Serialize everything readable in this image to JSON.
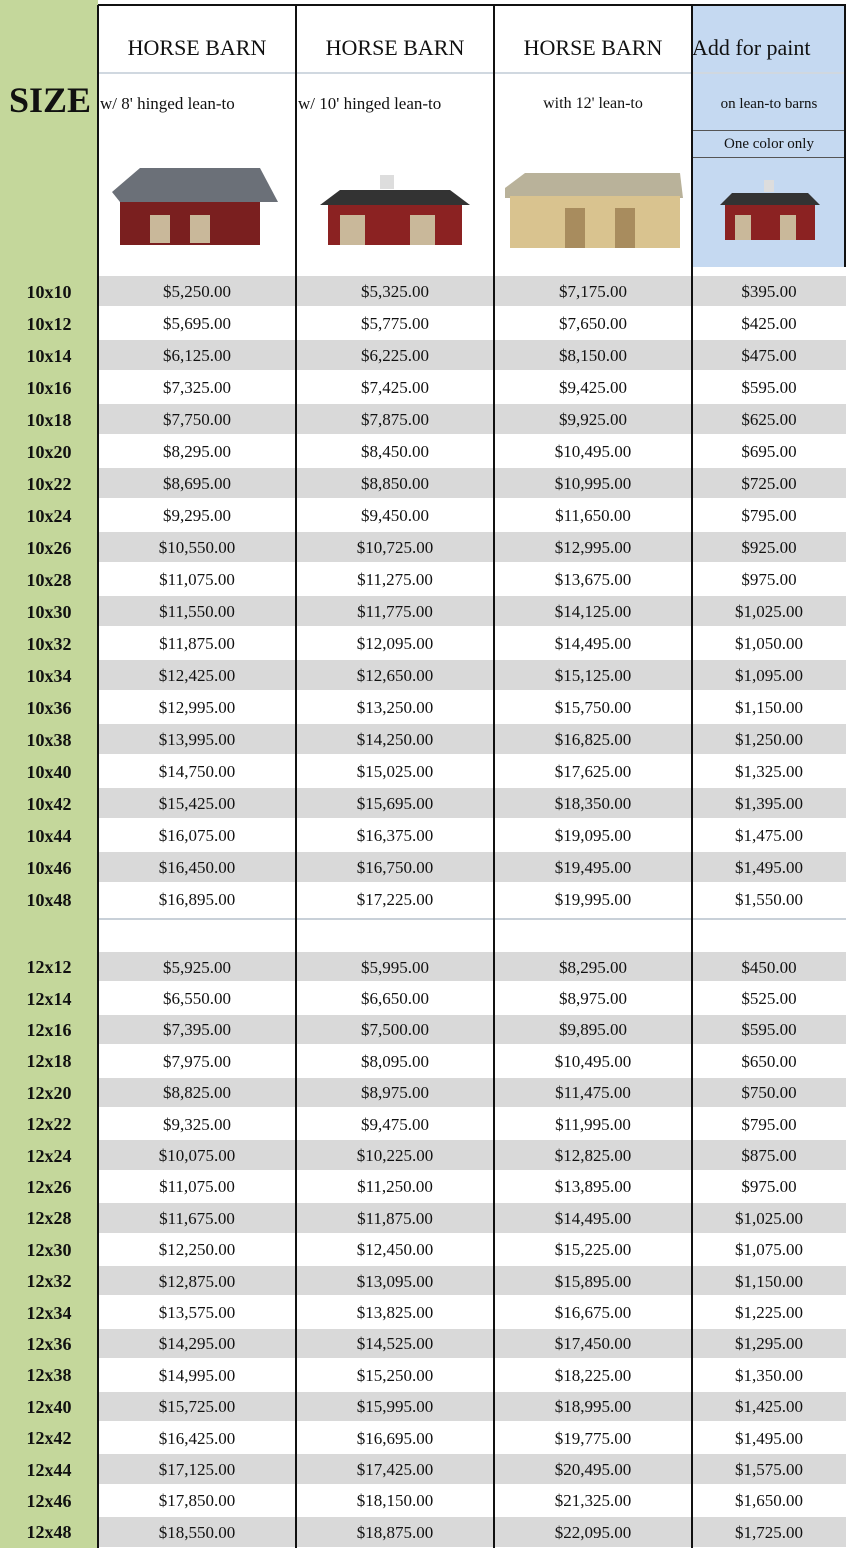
{
  "header": {
    "size_label": "SIZE",
    "note": "One color only",
    "columns": [
      {
        "title": "HORSE BARN",
        "subtitle": "w/ 8' hinged lean-to"
      },
      {
        "title": "HORSE BARN",
        "subtitle": "w/ 10' hinged lean-to"
      },
      {
        "title": "HORSE BARN",
        "subtitle": "with 12' lean-to"
      },
      {
        "title": "Add for paint",
        "subtitle": "on lean-to barns"
      }
    ]
  },
  "table": {
    "groups": [
      {
        "rows": [
          [
            "10x10",
            "$5,250.00",
            "$5,325.00",
            "$7,175.00",
            "$395.00"
          ],
          [
            "10x12",
            "$5,695.00",
            "$5,775.00",
            "$7,650.00",
            "$425.00"
          ],
          [
            "10x14",
            "$6,125.00",
            "$6,225.00",
            "$8,150.00",
            "$475.00"
          ],
          [
            "10x16",
            "$7,325.00",
            "$7,425.00",
            "$9,425.00",
            "$595.00"
          ],
          [
            "10x18",
            "$7,750.00",
            "$7,875.00",
            "$9,925.00",
            "$625.00"
          ],
          [
            "10x20",
            "$8,295.00",
            "$8,450.00",
            "$10,495.00",
            "$695.00"
          ],
          [
            "10x22",
            "$8,695.00",
            "$8,850.00",
            "$10,995.00",
            "$725.00"
          ],
          [
            "10x24",
            "$9,295.00",
            "$9,450.00",
            "$11,650.00",
            "$795.00"
          ],
          [
            "10x26",
            "$10,550.00",
            "$10,725.00",
            "$12,995.00",
            "$925.00"
          ],
          [
            "10x28",
            "$11,075.00",
            "$11,275.00",
            "$13,675.00",
            "$975.00"
          ],
          [
            "10x30",
            "$11,550.00",
            "$11,775.00",
            "$14,125.00",
            "$1,025.00"
          ],
          [
            "10x32",
            "$11,875.00",
            "$12,095.00",
            "$14,495.00",
            "$1,050.00"
          ],
          [
            "10x34",
            "$12,425.00",
            "$12,650.00",
            "$15,125.00",
            "$1,095.00"
          ],
          [
            "10x36",
            "$12,995.00",
            "$13,250.00",
            "$15,750.00",
            "$1,150.00"
          ],
          [
            "10x38",
            "$13,995.00",
            "$14,250.00",
            "$16,825.00",
            "$1,250.00"
          ],
          [
            "10x40",
            "$14,750.00",
            "$15,025.00",
            "$17,625.00",
            "$1,325.00"
          ],
          [
            "10x42",
            "$15,425.00",
            "$15,695.00",
            "$18,350.00",
            "$1,395.00"
          ],
          [
            "10x44",
            "$16,075.00",
            "$16,375.00",
            "$19,095.00",
            "$1,475.00"
          ],
          [
            "10x46",
            "$16,450.00",
            "$16,750.00",
            "$19,495.00",
            "$1,495.00"
          ],
          [
            "10x48",
            "$16,895.00",
            "$17,225.00",
            "$19,995.00",
            "$1,550.00"
          ]
        ]
      },
      {
        "rows": [
          [
            "12x12",
            "$5,925.00",
            "$5,995.00",
            "$8,295.00",
            "$450.00"
          ],
          [
            "12x14",
            "$6,550.00",
            "$6,650.00",
            "$8,975.00",
            "$525.00"
          ],
          [
            "12x16",
            "$7,395.00",
            "$7,500.00",
            "$9,895.00",
            "$595.00"
          ],
          [
            "12x18",
            "$7,975.00",
            "$8,095.00",
            "$10,495.00",
            "$650.00"
          ],
          [
            "12x20",
            "$8,825.00",
            "$8,975.00",
            "$11,475.00",
            "$750.00"
          ],
          [
            "12x22",
            "$9,325.00",
            "$9,475.00",
            "$11,995.00",
            "$795.00"
          ],
          [
            "12x24",
            "$10,075.00",
            "$10,225.00",
            "$12,825.00",
            "$875.00"
          ],
          [
            "12x26",
            "$11,075.00",
            "$11,250.00",
            "$13,895.00",
            "$975.00"
          ],
          [
            "12x28",
            "$11,675.00",
            "$11,875.00",
            "$14,495.00",
            "$1,025.00"
          ],
          [
            "12x30",
            "$12,250.00",
            "$12,450.00",
            "$15,225.00",
            "$1,075.00"
          ],
          [
            "12x32",
            "$12,875.00",
            "$13,095.00",
            "$15,895.00",
            "$1,150.00"
          ],
          [
            "12x34",
            "$13,575.00",
            "$13,825.00",
            "$16,675.00",
            "$1,225.00"
          ],
          [
            "12x36",
            "$14,295.00",
            "$14,525.00",
            "$17,450.00",
            "$1,295.00"
          ],
          [
            "12x38",
            "$14,995.00",
            "$15,250.00",
            "$18,225.00",
            "$1,350.00"
          ],
          [
            "12x40",
            "$15,725.00",
            "$15,995.00",
            "$18,995.00",
            "$1,425.00"
          ],
          [
            "12x42",
            "$16,425.00",
            "$16,695.00",
            "$19,775.00",
            "$1,495.00"
          ],
          [
            "12x44",
            "$17,125.00",
            "$17,425.00",
            "$20,495.00",
            "$1,575.00"
          ],
          [
            "12x46",
            "$17,850.00",
            "$18,150.00",
            "$21,325.00",
            "$1,650.00"
          ],
          [
            "12x48",
            "$18,550.00",
            "$18,875.00",
            "$22,095.00",
            "$1,725.00"
          ]
        ]
      }
    ]
  }
}
